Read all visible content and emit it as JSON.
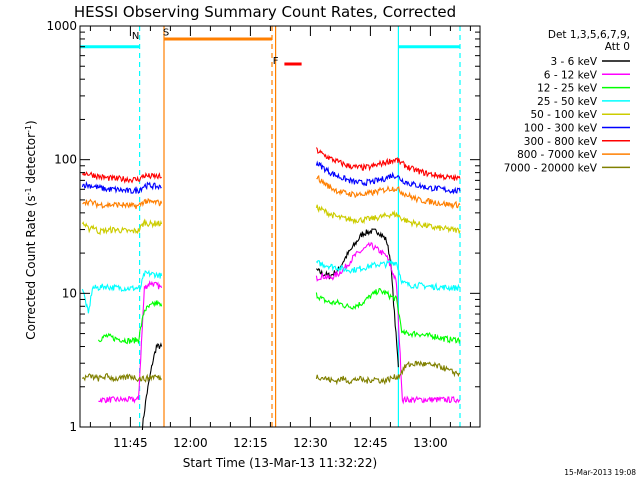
{
  "chart_data": {
    "type": "line",
    "title": "HESSI Observing Summary Count Rates, Corrected",
    "xlabel": "Start Time (13-Mar-13 11:32:22)",
    "ylabel": "Corrected Count Rate (s⁻¹ detector⁻¹)",
    "x_tick_labels": [
      "11:45",
      "12:00",
      "12:15",
      "12:30",
      "12:45",
      "13:00"
    ],
    "x_ticks_min": [
      705,
      720,
      735,
      750,
      765,
      780
    ],
    "xlim": [
      692.4,
      792.4
    ],
    "y_scale": "log",
    "ylim": [
      1,
      1000
    ],
    "y_tick_labels": [
      "1",
      "10",
      "100",
      "1000"
    ],
    "legend_title": [
      "Det 1,3,5,6,7,9,",
      "Att 0"
    ],
    "legend_placement": "right",
    "timestamp": "15-Mar-2013 19:08",
    "series": [
      {
        "name": "3 - 6 keV",
        "color": "#000000",
        "segments": [
          {
            "x": [
              708,
              709,
              710.5,
              711.5,
              712.8
            ],
            "y": [
              1,
              1.7,
              3,
              4,
              4
            ]
          },
          {
            "x": [
              751.5,
              753,
              755,
              757,
              759,
              761,
              763,
              765,
              767,
              769,
              770,
              772
            ],
            "y": [
              15,
              14,
              13.5,
              15,
              19,
              23,
              28,
              29,
              29,
              25,
              18,
              2.8
            ]
          }
        ]
      },
      {
        "name": "6 - 12 keV",
        "color": "#ff00ff",
        "segments": [
          {
            "x": [
              697,
              699,
              701,
              703,
              705,
              707,
              708.5,
              710,
              711.5,
              712.8
            ],
            "y": [
              1.6,
              1.6,
              1.6,
              1.6,
              1.6,
              1.6,
              11,
              12,
              11.5,
              11
            ]
          },
          {
            "x": [
              751.5,
              753,
              755,
              757,
              759,
              761,
              763,
              765,
              767,
              769,
              770,
              771.5,
              773,
              775,
              777,
              779,
              781,
              783,
              785,
              787.4
            ],
            "y": [
              13,
              13.5,
              13,
              14,
              16,
              19,
              21,
              23,
              21,
              19,
              16,
              12,
              1.6,
              1.6,
              1.6,
              1.6,
              1.6,
              1.6,
              1.6,
              1.6
            ]
          }
        ]
      },
      {
        "name": "12 - 25 keV",
        "color": "#00ff00",
        "segments": [
          {
            "x": [
              697,
              699,
              701,
              703,
              705,
              707,
              708.5,
              710,
              711.5,
              712.8
            ],
            "y": [
              4.5,
              4.8,
              4.6,
              4.5,
              4.4,
              4.5,
              7.5,
              8,
              8.5,
              8
            ]
          },
          {
            "x": [
              751.5,
              753,
              755,
              757,
              759,
              761,
              763,
              765,
              767,
              769,
              770,
              771.5,
              773,
              775,
              777,
              779,
              781,
              783,
              785,
              787.4
            ],
            "y": [
              9.8,
              9,
              8.5,
              8.5,
              8,
              8,
              8.5,
              9.5,
              10.5,
              10,
              9.5,
              9,
              5,
              5,
              5,
              4.8,
              4.8,
              4.6,
              4.5,
              4.5
            ]
          }
        ]
      },
      {
        "name": "25 - 50 keV",
        "color": "#00ffff",
        "segments": [
          {
            "x": [
              693,
              694.5,
              695.5,
              697,
              698.5,
              700,
              702,
              704,
              706,
              707.5,
              708.5,
              710,
              711.5,
              712.8
            ],
            "y": [
              11,
              7,
              11,
              11,
              11.3,
              11.1,
              11,
              10.9,
              10.9,
              11,
              14,
              14,
              13.8,
              13.5
            ]
          },
          {
            "x": [
              751.5,
              753,
              755,
              757,
              759,
              761,
              763,
              765,
              767,
              769,
              770,
              771.5,
              773,
              775,
              777,
              779,
              781,
              783,
              785,
              787.4
            ],
            "y": [
              17,
              16.5,
              16,
              15.5,
              15,
              15,
              15.5,
              16,
              16.5,
              16.5,
              17,
              17,
              12,
              11.5,
              11.5,
              11.3,
              11.2,
              11.1,
              11,
              11
            ]
          }
        ]
      },
      {
        "name": "50 - 100 keV",
        "color": "#cccc00",
        "segments": [
          {
            "x": [
              693,
              694.5,
              695.5,
              697,
              699,
              701,
              703,
              705,
              707,
              708.5,
              710,
              711.5,
              712.8
            ],
            "y": [
              34,
              30,
              32,
              29,
              29.5,
              30,
              29.5,
              29,
              29.5,
              34,
              33,
              33.5,
              33
            ]
          },
          {
            "x": [
              751.5,
              753,
              755,
              757,
              759,
              761,
              763,
              765,
              767,
              769,
              770,
              771.5,
              773,
              775,
              777,
              779,
              781,
              783,
              785,
              787.4
            ],
            "y": [
              44,
              42,
              39,
              37,
              36,
              35.5,
              35.5,
              36,
              37,
              38,
              39,
              39,
              36,
              34,
              33,
              32,
              31,
              30.5,
              30,
              29.5
            ]
          }
        ]
      },
      {
        "name": "100 - 300 keV",
        "color": "#0000ff",
        "segments": [
          {
            "x": [
              693,
              695,
              697,
              699,
              701,
              703,
              705,
              707,
              708.5,
              710,
              711.5,
              712.8
            ],
            "y": [
              65,
              64,
              62,
              60,
              60,
              59,
              58,
              59,
              64,
              64,
              63,
              62
            ]
          },
          {
            "x": [
              751.5,
              753,
              755,
              757,
              759,
              761,
              763,
              765,
              767,
              769,
              770,
              771.5,
              773,
              775,
              777,
              779,
              781,
              783,
              785,
              787.4
            ],
            "y": [
              95,
              88,
              80,
              75,
              71,
              68,
              67,
              68,
              70,
              73,
              76,
              76,
              70,
              66,
              64,
              62,
              61,
              60,
              59,
              58
            ]
          }
        ]
      },
      {
        "name": "300 - 800 keV",
        "color": "#ff0000",
        "segments": [
          {
            "x": [
              693,
              695,
              697,
              699,
              701,
              703,
              705,
              707,
              708.5,
              710,
              711.5,
              712.8
            ],
            "y": [
              80,
              78,
              75,
              73,
              72,
              72,
              71,
              71,
              76,
              75,
              75,
              74
            ]
          },
          {
            "x": [
              751.5,
              753,
              755,
              757,
              759,
              761,
              763,
              765,
              767,
              769,
              770,
              771.5,
              773,
              775,
              777,
              779,
              781,
              783,
              785,
              787.4
            ],
            "y": [
              118,
              110,
              102,
              96,
              91,
              88,
              87,
              88,
              92,
              96,
              98,
              100,
              93,
              86,
              82,
              79,
              77,
              75,
              73,
              72
            ]
          }
        ]
      },
      {
        "name": "800 - 7000 keV",
        "color": "#ff7f00",
        "segments": [
          {
            "x": [
              693,
              695,
              697,
              699,
              701,
              703,
              705,
              707,
              708.5,
              710,
              711.5,
              712.8
            ],
            "y": [
              49,
              48,
              46,
              46,
              46,
              46,
              45,
              45,
              49,
              48,
              48,
              47
            ]
          },
          {
            "x": [
              751.5,
              753,
              755,
              757,
              759,
              761,
              763,
              765,
              767,
              769,
              770,
              771.5,
              773,
              775,
              777,
              779,
              781,
              783,
              785,
              787.4
            ],
            "y": [
              75,
              68,
              62,
              58,
              56,
              55,
              55,
              56,
              58,
              60,
              61,
              61,
              57,
              53,
              50,
              49,
              48,
              47,
              46,
              46
            ]
          }
        ]
      },
      {
        "name": "7000 - 20000 keV",
        "color": "#808000",
        "segments": [
          {
            "x": [
              693,
              695,
              697,
              699,
              701,
              703,
              705,
              707,
              709,
              711,
              712.8
            ],
            "y": [
              2.3,
              2.4,
              2.3,
              2.4,
              2.3,
              2.3,
              2.4,
              2.3,
              2.3,
              2.4,
              2.3
            ]
          },
          {
            "x": [
              751.5,
              754,
              756,
              758,
              760,
              762,
              764,
              766,
              768,
              770,
              772,
              774,
              777,
              780,
              783,
              785,
              787.4
            ],
            "y": [
              2.4,
              2.3,
              2.2,
              2.3,
              2.2,
              2.3,
              2.2,
              2.3,
              2.2,
              2.3,
              2.4,
              2.9,
              3,
              2.9,
              2.8,
              2.6,
              2.5
            ]
          }
        ]
      }
    ],
    "spans": [
      {
        "kind": "night",
        "x": [
          692.4,
          707.3
        ],
        "y": 700,
        "color": "#00ffff",
        "label": "N",
        "label_x": 706.3,
        "label_y": 800
      },
      {
        "kind": "night",
        "x": [
          772,
          787.4
        ],
        "y": 700,
        "color": "#00ffff",
        "label": "",
        "label_x": 0,
        "label_y": 0
      },
      {
        "kind": "SAA",
        "x": [
          713.4,
          740.4
        ],
        "y": 800,
        "color": "#ff7f00",
        "label": "S",
        "label_x": 713.9,
        "label_y": 850
      },
      {
        "kind": "flare",
        "x": [
          743.5,
          747.8
        ],
        "y": 520,
        "color": "#ff0000",
        "label": "F",
        "label_x": 741.3,
        "label_y": 520
      }
    ],
    "vlines": [
      {
        "x": 707.3,
        "color": "#00ffff",
        "dashed": true
      },
      {
        "x": 772,
        "color": "#00ffff",
        "dashed": false
      },
      {
        "x": 787.4,
        "color": "#00ffff",
        "dashed": true
      },
      {
        "x": 713.4,
        "color": "#ff7f00",
        "dashed": false
      },
      {
        "x": 740.4,
        "color": "#ff7f00",
        "dashed": true
      },
      {
        "x": 741.3,
        "color": "#ff7f00",
        "dashed": false
      }
    ]
  }
}
